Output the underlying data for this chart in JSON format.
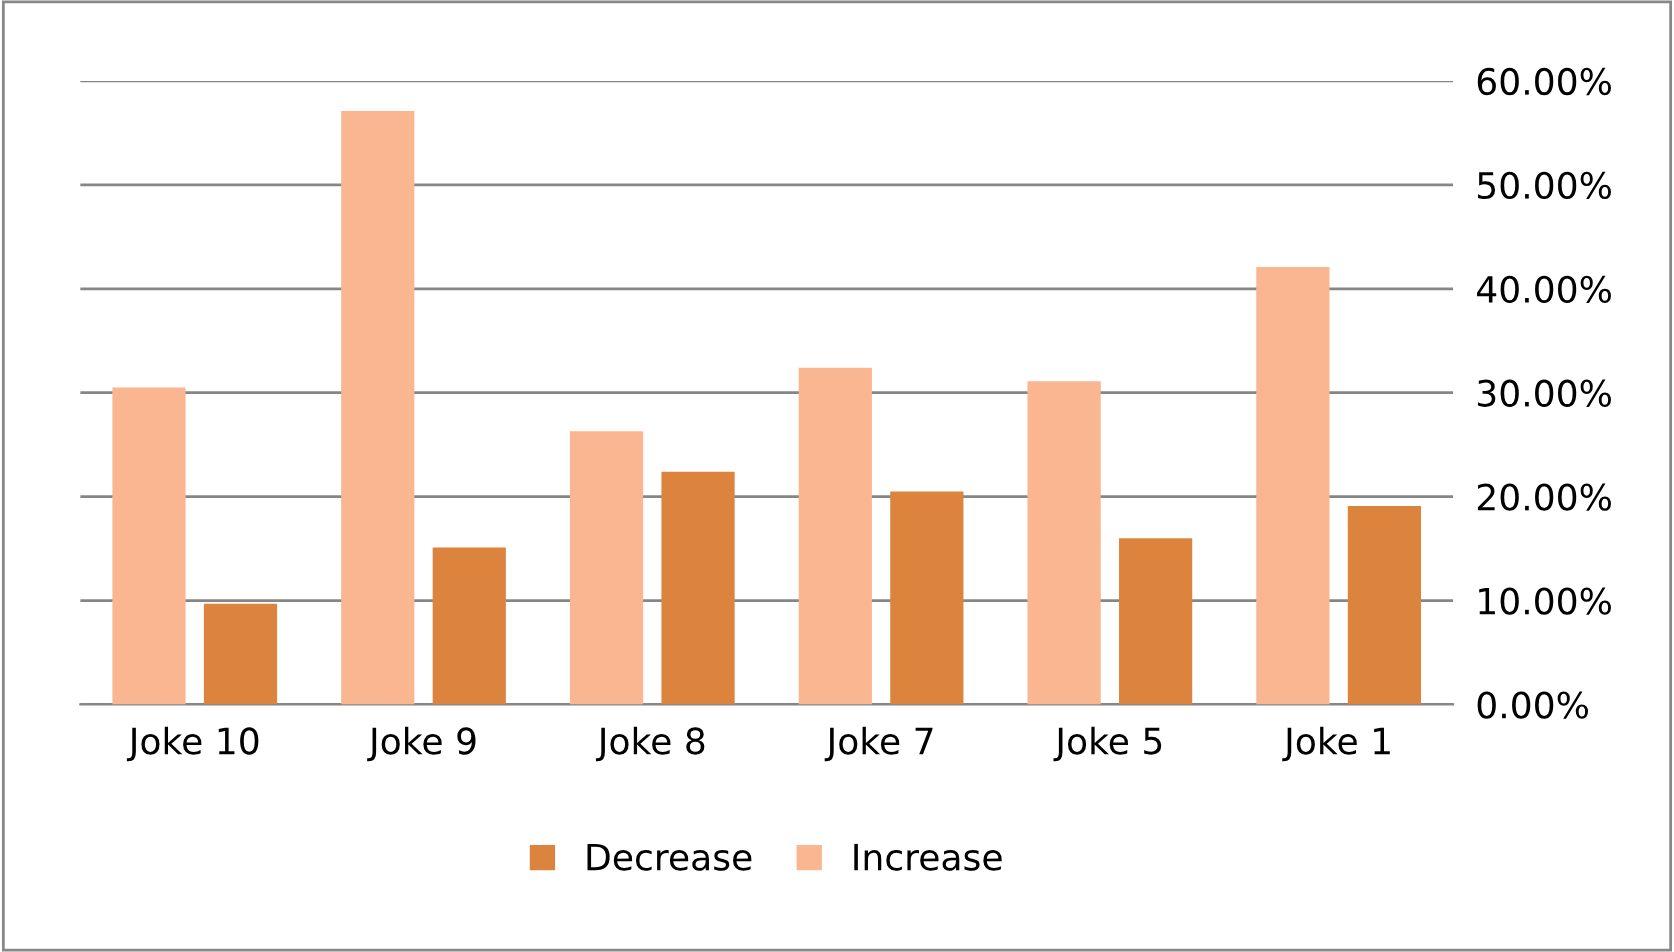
{
  "chart_data": {
    "type": "bar",
    "categories": [
      "Joke 10",
      "Joke 9",
      "Joke 8",
      "Joke 7",
      "Joke 5",
      "Joke 1"
    ],
    "series": [
      {
        "name": "Increase",
        "color": "#f9b691",
        "values": [
          30.5,
          57.1,
          26.3,
          32.4,
          31.1,
          42.1
        ]
      },
      {
        "name": "Decrease",
        "color": "#dc843e",
        "values": [
          9.7,
          15.1,
          22.4,
          20.5,
          16.0,
          19.1
        ]
      }
    ],
    "ylim": [
      0,
      60
    ],
    "yticks": [
      {
        "value": 0,
        "label": "0.00%"
      },
      {
        "value": 10,
        "label": "10.00%"
      },
      {
        "value": 20,
        "label": "20.00%"
      },
      {
        "value": 30,
        "label": "30.00%"
      },
      {
        "value": 40,
        "label": "40.00%"
      },
      {
        "value": 50,
        "label": "50.00%"
      },
      {
        "value": 60,
        "label": "60.00%"
      }
    ],
    "grid": "y",
    "legend": "bottom"
  }
}
